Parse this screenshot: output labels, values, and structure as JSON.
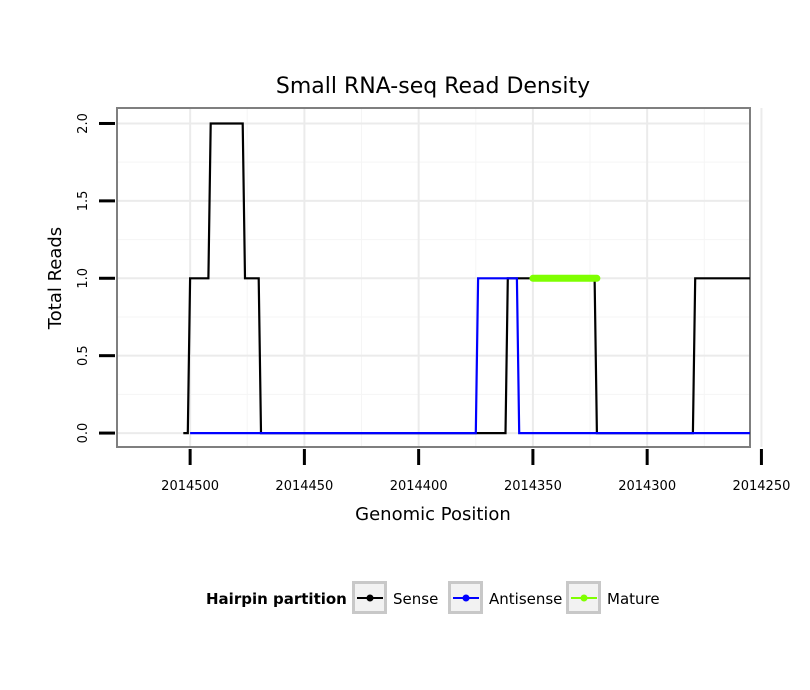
{
  "chart_data": {
    "type": "line",
    "title": "Small RNA-seq Read Density",
    "xlabel": "Genomic Position",
    "ylabel": "Total Reads",
    "x_reversed": true,
    "xlim": [
      2014255,
      2014532
    ],
    "ylim": [
      -0.09,
      2.1
    ],
    "x_ticks": [
      2014500,
      2014450,
      2014400,
      2014350,
      2014300,
      2014250
    ],
    "x_tick_labels": [
      "2014500",
      "2014450",
      "2014400",
      "2014350",
      "2014300",
      "2014250"
    ],
    "y_ticks": [
      0.0,
      0.5,
      1.0,
      1.5,
      2.0
    ],
    "y_tick_labels": [
      "0.0",
      "0.5",
      "1.0",
      "1.5",
      "2.0"
    ],
    "grid": true,
    "legend": {
      "title": "Hairpin partition",
      "position": "bottom",
      "entries": [
        "Sense",
        "Antisense",
        "Mature"
      ]
    },
    "series": [
      {
        "name": "Sense",
        "color": "#000000",
        "x": [
          2014503,
          2014501,
          2014500,
          2014492,
          2014491,
          2014477,
          2014476,
          2014470,
          2014469,
          2014362,
          2014361,
          2014323,
          2014322,
          2014280,
          2014279,
          2014255
        ],
        "y": [
          0,
          0,
          1,
          1,
          2,
          2,
          1,
          1,
          0,
          0,
          1,
          1,
          0,
          0,
          1,
          1
        ]
      },
      {
        "name": "Antisense",
        "color": "#0000ff",
        "x": [
          2014500,
          2014375,
          2014374,
          2014357,
          2014356,
          2014279,
          2014278,
          2014255
        ],
        "y": [
          0,
          0,
          1,
          1,
          0,
          0,
          0,
          0
        ]
      },
      {
        "name": "Mature",
        "color": "#7fff00",
        "x": [
          2014350,
          2014322
        ],
        "y": [
          1,
          1
        ]
      }
    ]
  }
}
